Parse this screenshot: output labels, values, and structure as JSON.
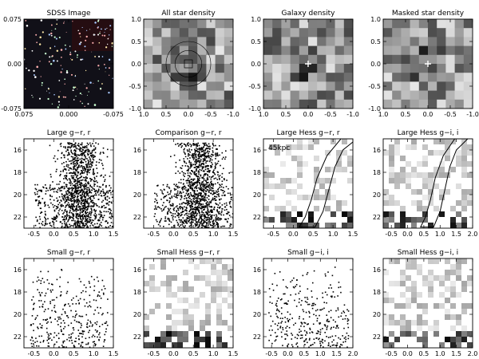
{
  "figure": {
    "panels": [
      {
        "id": "sdss-image",
        "title": "SDSS Image",
        "kind": "image",
        "xticks": [
          "0.075",
          "0.000",
          "-0.075"
        ],
        "yticks": [
          "0.075",
          "0.00",
          "-0.075"
        ]
      },
      {
        "id": "all-star-density",
        "title": "All star density",
        "kind": "density",
        "xticks": [
          "1.0",
          "0.5",
          "0.0",
          "-0.5",
          "-1.0"
        ],
        "yticks": [
          "1.0",
          "0.5",
          "0.0",
          "-0.5",
          "-1.0"
        ]
      },
      {
        "id": "galaxy-density",
        "title": "Galaxy density",
        "kind": "density",
        "xticks": [
          "1.0",
          "0.5",
          "0.0",
          "-0.5",
          "-1.0"
        ],
        "yticks": [
          "1.0",
          "0.5",
          "0.0",
          "-0.5",
          "-1.0"
        ]
      },
      {
        "id": "masked-star-density",
        "title": "Masked star density",
        "kind": "density",
        "xticks": [
          "1.0",
          "0.5",
          "0.0",
          "-0.5",
          "-1.0"
        ],
        "yticks": [
          "1.0",
          "0.5",
          "0.0",
          "-0.5",
          "-1.0"
        ]
      },
      {
        "id": "large-g-r-r",
        "title": "Large g−r, r",
        "kind": "cmd",
        "xticks": [
          "-0.5",
          "0.0",
          "0.5",
          "1.0",
          "1.5"
        ],
        "yticks": [
          "16",
          "18",
          "20",
          "22"
        ]
      },
      {
        "id": "comparison-g-r-r",
        "title": "Comparison g−r, r",
        "kind": "cmd",
        "xticks": [
          "-0.5",
          "0.0",
          "0.5",
          "1.0",
          "1.5"
        ],
        "yticks": [
          "16",
          "18",
          "20",
          "22"
        ]
      },
      {
        "id": "large-hess-g-r-r",
        "title": "Large Hess g−r, r",
        "kind": "hess",
        "annotation": "45kpc",
        "xticks": [
          "-0.5",
          "0.0",
          "0.5",
          "1.0",
          "1.5"
        ],
        "yticks": [
          "16",
          "18",
          "20",
          "22"
        ]
      },
      {
        "id": "large-hess-g-i-i",
        "title": "Large Hess g−i, i",
        "kind": "hess",
        "xticks": [
          "-0.5",
          "0.0",
          "0.5",
          "1.0",
          "1.5",
          "2.0"
        ],
        "yticks": [
          "16",
          "18",
          "20",
          "22"
        ]
      },
      {
        "id": "small-g-r-r",
        "title": "Small g−r, r",
        "kind": "cmd",
        "xticks": [
          "-0.5",
          "0.0",
          "0.5",
          "1.0",
          "1.5"
        ],
        "yticks": [
          "16",
          "18",
          "20",
          "22"
        ]
      },
      {
        "id": "small-hess-g-r-r",
        "title": "Small Hess g−r, r",
        "kind": "hess",
        "xticks": [
          "-0.5",
          "0.0",
          "0.5",
          "1.0",
          "1.5"
        ],
        "yticks": [
          "16",
          "18",
          "20",
          "22"
        ]
      },
      {
        "id": "small-g-i-i",
        "title": "Small g−i, i",
        "kind": "cmd",
        "xticks": [
          "-0.5",
          "0.0",
          "0.5",
          "1.0",
          "1.5",
          "2.0"
        ],
        "yticks": [
          "16",
          "18",
          "20",
          "22"
        ]
      },
      {
        "id": "small-hess-g-i-i",
        "title": "Small Hess g−i, i",
        "kind": "hess",
        "xticks": [
          "-0.5",
          "0.0",
          "0.5",
          "1.0",
          "1.5",
          "2.0"
        ],
        "yticks": [
          "16",
          "18",
          "20",
          "22"
        ]
      }
    ]
  },
  "chart_data": [
    {
      "type": "heatmap",
      "title": "SDSS Image",
      "xlim": [
        0.075,
        -0.075
      ],
      "ylim": [
        -0.075,
        0.075
      ]
    },
    {
      "type": "heatmap",
      "title": "All star density",
      "xlim": [
        1.0,
        -1.0
      ],
      "ylim": [
        -1.0,
        1.0
      ],
      "marker": [
        0.0,
        0.0
      ]
    },
    {
      "type": "heatmap",
      "title": "Galaxy density",
      "xlim": [
        1.0,
        -1.0
      ],
      "ylim": [
        -1.0,
        1.0
      ],
      "marker": [
        0.0,
        0.0
      ]
    },
    {
      "type": "heatmap",
      "title": "Masked star density",
      "xlim": [
        1.0,
        -1.0
      ],
      "ylim": [
        -1.0,
        1.0
      ],
      "marker": [
        0.0,
        0.0
      ]
    },
    {
      "type": "scatter",
      "title": "Large g−r, r",
      "xlim": [
        -0.75,
        1.5
      ],
      "ylim": [
        23,
        15
      ]
    },
    {
      "type": "scatter",
      "title": "Comparison g−r, r",
      "xlim": [
        -0.75,
        1.5
      ],
      "ylim": [
        23,
        15
      ]
    },
    {
      "type": "heatmap",
      "title": "Large Hess g−r, r",
      "xlim": [
        -0.75,
        1.5
      ],
      "ylim": [
        23,
        15
      ],
      "annotations": [
        "45kpc"
      ]
    },
    {
      "type": "heatmap",
      "title": "Large Hess g−i, i",
      "xlim": [
        -0.75,
        2.0
      ],
      "ylim": [
        23,
        15
      ]
    },
    {
      "type": "scatter",
      "title": "Small g−r, r",
      "xlim": [
        -0.75,
        1.5
      ],
      "ylim": [
        23,
        15
      ]
    },
    {
      "type": "heatmap",
      "title": "Small Hess g−r, r",
      "xlim": [
        -0.75,
        1.5
      ],
      "ylim": [
        23,
        15
      ]
    },
    {
      "type": "scatter",
      "title": "Small g−i, i",
      "xlim": [
        -0.75,
        2.0
      ],
      "ylim": [
        23,
        15
      ]
    },
    {
      "type": "heatmap",
      "title": "Small Hess g−i, i",
      "xlim": [
        -0.75,
        2.0
      ],
      "ylim": [
        23,
        15
      ]
    }
  ]
}
